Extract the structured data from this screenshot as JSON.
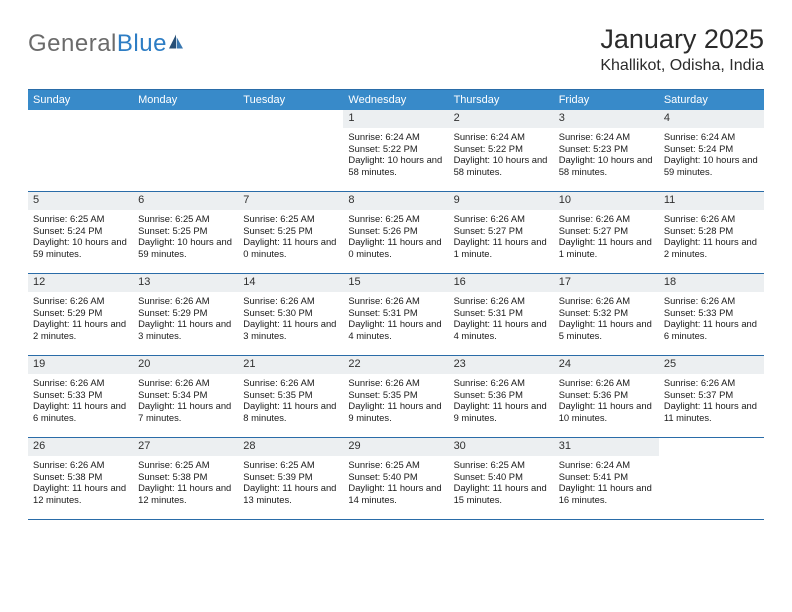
{
  "logo": {
    "general": "General",
    "blue": "Blue"
  },
  "header": {
    "title": "January 2025",
    "location": "Khallikot, Odisha, India"
  },
  "colors": {
    "header_bar": "#388ac9",
    "rule": "#2a6ca8",
    "daynum_bg": "#eceff1",
    "text": "#1a1a1a",
    "logo_gray": "#6b6b6b",
    "logo_blue": "#2d7dc4",
    "sail_dark": "#274f77",
    "sail_mid": "#3977b0"
  },
  "day_names": [
    "Sunday",
    "Monday",
    "Tuesday",
    "Wednesday",
    "Thursday",
    "Friday",
    "Saturday"
  ],
  "weeks": [
    [
      {
        "n": "",
        "sr": "",
        "ss": "",
        "dl": ""
      },
      {
        "n": "",
        "sr": "",
        "ss": "",
        "dl": ""
      },
      {
        "n": "",
        "sr": "",
        "ss": "",
        "dl": ""
      },
      {
        "n": "1",
        "sr": "Sunrise: 6:24 AM",
        "ss": "Sunset: 5:22 PM",
        "dl": "Daylight: 10 hours and 58 minutes."
      },
      {
        "n": "2",
        "sr": "Sunrise: 6:24 AM",
        "ss": "Sunset: 5:22 PM",
        "dl": "Daylight: 10 hours and 58 minutes."
      },
      {
        "n": "3",
        "sr": "Sunrise: 6:24 AM",
        "ss": "Sunset: 5:23 PM",
        "dl": "Daylight: 10 hours and 58 minutes."
      },
      {
        "n": "4",
        "sr": "Sunrise: 6:24 AM",
        "ss": "Sunset: 5:24 PM",
        "dl": "Daylight: 10 hours and 59 minutes."
      }
    ],
    [
      {
        "n": "5",
        "sr": "Sunrise: 6:25 AM",
        "ss": "Sunset: 5:24 PM",
        "dl": "Daylight: 10 hours and 59 minutes."
      },
      {
        "n": "6",
        "sr": "Sunrise: 6:25 AM",
        "ss": "Sunset: 5:25 PM",
        "dl": "Daylight: 10 hours and 59 minutes."
      },
      {
        "n": "7",
        "sr": "Sunrise: 6:25 AM",
        "ss": "Sunset: 5:25 PM",
        "dl": "Daylight: 11 hours and 0 minutes."
      },
      {
        "n": "8",
        "sr": "Sunrise: 6:25 AM",
        "ss": "Sunset: 5:26 PM",
        "dl": "Daylight: 11 hours and 0 minutes."
      },
      {
        "n": "9",
        "sr": "Sunrise: 6:26 AM",
        "ss": "Sunset: 5:27 PM",
        "dl": "Daylight: 11 hours and 1 minute."
      },
      {
        "n": "10",
        "sr": "Sunrise: 6:26 AM",
        "ss": "Sunset: 5:27 PM",
        "dl": "Daylight: 11 hours and 1 minute."
      },
      {
        "n": "11",
        "sr": "Sunrise: 6:26 AM",
        "ss": "Sunset: 5:28 PM",
        "dl": "Daylight: 11 hours and 2 minutes."
      }
    ],
    [
      {
        "n": "12",
        "sr": "Sunrise: 6:26 AM",
        "ss": "Sunset: 5:29 PM",
        "dl": "Daylight: 11 hours and 2 minutes."
      },
      {
        "n": "13",
        "sr": "Sunrise: 6:26 AM",
        "ss": "Sunset: 5:29 PM",
        "dl": "Daylight: 11 hours and 3 minutes."
      },
      {
        "n": "14",
        "sr": "Sunrise: 6:26 AM",
        "ss": "Sunset: 5:30 PM",
        "dl": "Daylight: 11 hours and 3 minutes."
      },
      {
        "n": "15",
        "sr": "Sunrise: 6:26 AM",
        "ss": "Sunset: 5:31 PM",
        "dl": "Daylight: 11 hours and 4 minutes."
      },
      {
        "n": "16",
        "sr": "Sunrise: 6:26 AM",
        "ss": "Sunset: 5:31 PM",
        "dl": "Daylight: 11 hours and 4 minutes."
      },
      {
        "n": "17",
        "sr": "Sunrise: 6:26 AM",
        "ss": "Sunset: 5:32 PM",
        "dl": "Daylight: 11 hours and 5 minutes."
      },
      {
        "n": "18",
        "sr": "Sunrise: 6:26 AM",
        "ss": "Sunset: 5:33 PM",
        "dl": "Daylight: 11 hours and 6 minutes."
      }
    ],
    [
      {
        "n": "19",
        "sr": "Sunrise: 6:26 AM",
        "ss": "Sunset: 5:33 PM",
        "dl": "Daylight: 11 hours and 6 minutes."
      },
      {
        "n": "20",
        "sr": "Sunrise: 6:26 AM",
        "ss": "Sunset: 5:34 PM",
        "dl": "Daylight: 11 hours and 7 minutes."
      },
      {
        "n": "21",
        "sr": "Sunrise: 6:26 AM",
        "ss": "Sunset: 5:35 PM",
        "dl": "Daylight: 11 hours and 8 minutes."
      },
      {
        "n": "22",
        "sr": "Sunrise: 6:26 AM",
        "ss": "Sunset: 5:35 PM",
        "dl": "Daylight: 11 hours and 9 minutes."
      },
      {
        "n": "23",
        "sr": "Sunrise: 6:26 AM",
        "ss": "Sunset: 5:36 PM",
        "dl": "Daylight: 11 hours and 9 minutes."
      },
      {
        "n": "24",
        "sr": "Sunrise: 6:26 AM",
        "ss": "Sunset: 5:36 PM",
        "dl": "Daylight: 11 hours and 10 minutes."
      },
      {
        "n": "25",
        "sr": "Sunrise: 6:26 AM",
        "ss": "Sunset: 5:37 PM",
        "dl": "Daylight: 11 hours and 11 minutes."
      }
    ],
    [
      {
        "n": "26",
        "sr": "Sunrise: 6:26 AM",
        "ss": "Sunset: 5:38 PM",
        "dl": "Daylight: 11 hours and 12 minutes."
      },
      {
        "n": "27",
        "sr": "Sunrise: 6:25 AM",
        "ss": "Sunset: 5:38 PM",
        "dl": "Daylight: 11 hours and 12 minutes."
      },
      {
        "n": "28",
        "sr": "Sunrise: 6:25 AM",
        "ss": "Sunset: 5:39 PM",
        "dl": "Daylight: 11 hours and 13 minutes."
      },
      {
        "n": "29",
        "sr": "Sunrise: 6:25 AM",
        "ss": "Sunset: 5:40 PM",
        "dl": "Daylight: 11 hours and 14 minutes."
      },
      {
        "n": "30",
        "sr": "Sunrise: 6:25 AM",
        "ss": "Sunset: 5:40 PM",
        "dl": "Daylight: 11 hours and 15 minutes."
      },
      {
        "n": "31",
        "sr": "Sunrise: 6:24 AM",
        "ss": "Sunset: 5:41 PM",
        "dl": "Daylight: 11 hours and 16 minutes."
      },
      {
        "n": "",
        "sr": "",
        "ss": "",
        "dl": ""
      }
    ]
  ]
}
